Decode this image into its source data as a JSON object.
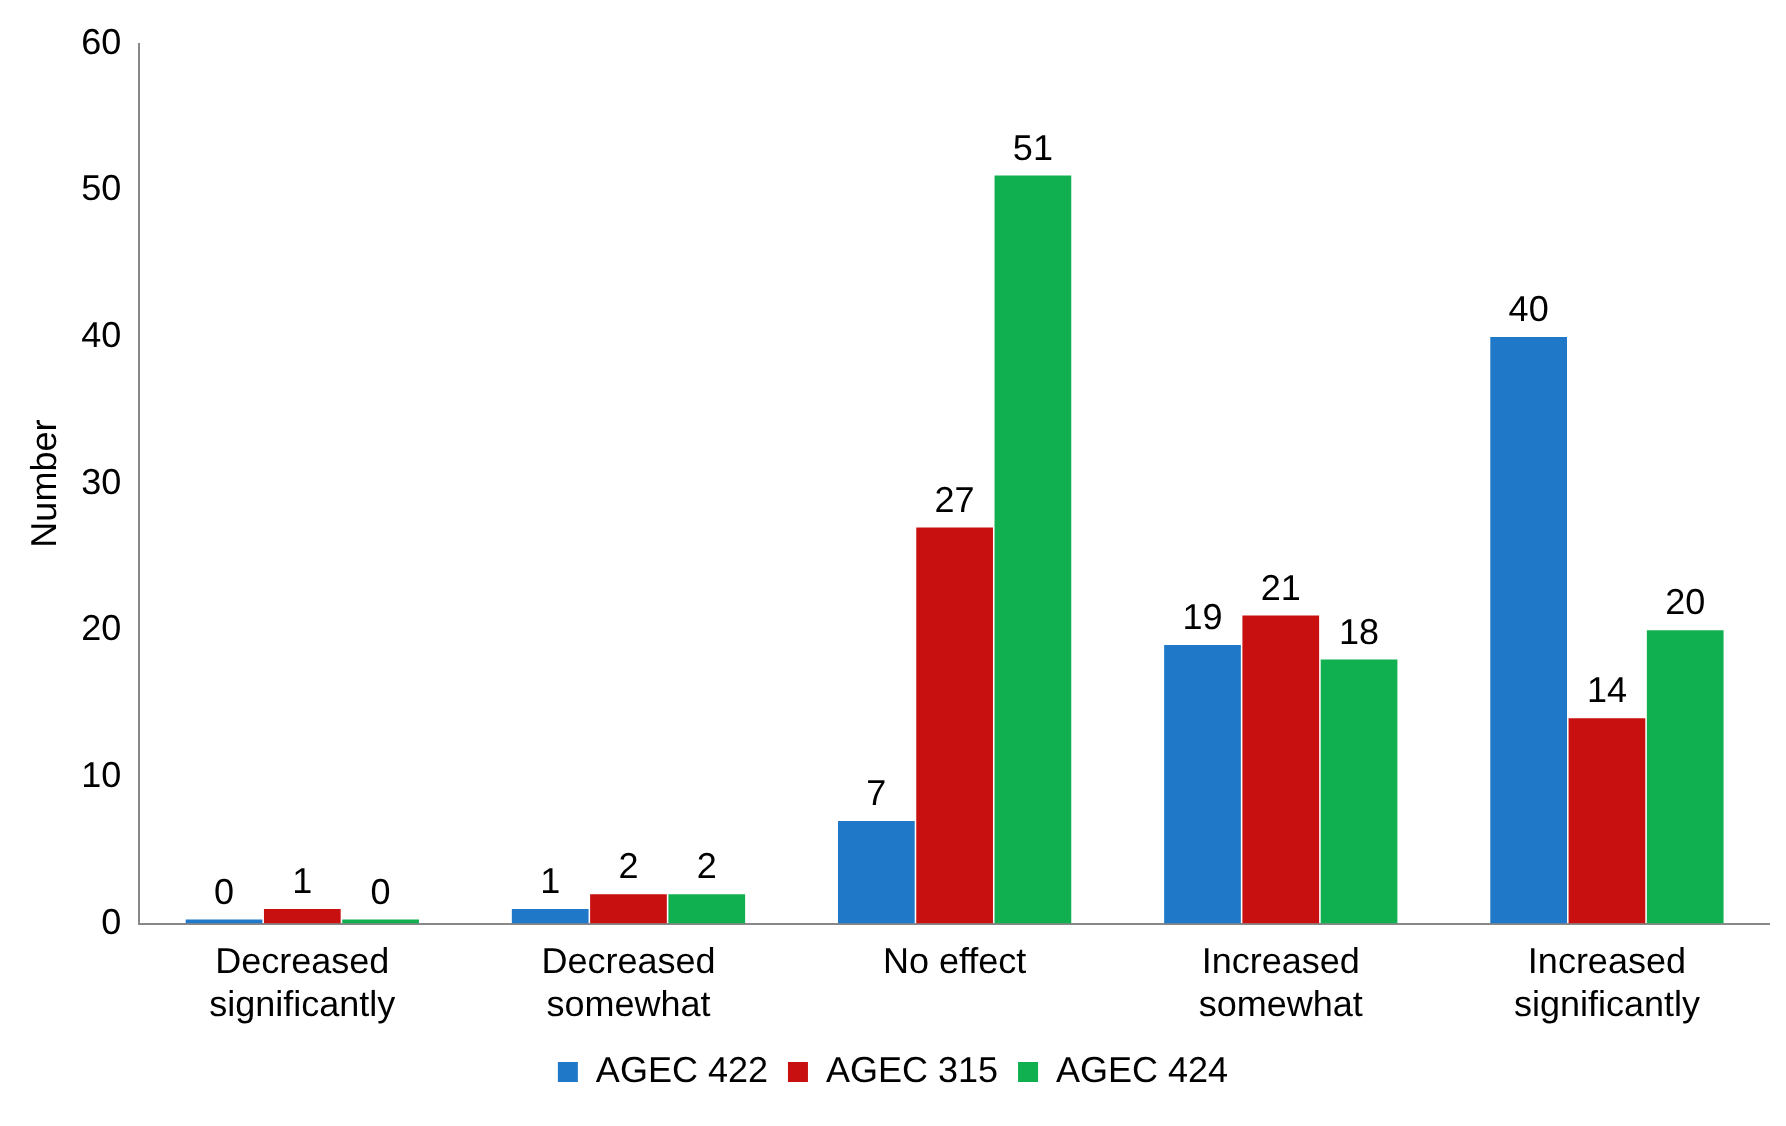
{
  "chart_data": {
    "type": "bar",
    "ylabel": "Number",
    "categories": [
      "Decreased significantly",
      "Decreased somewhat",
      "No effect",
      "Increased somewhat",
      "Increased significantly"
    ],
    "series": [
      {
        "name": "AGEC 422",
        "color": "#1f78c8",
        "values": [
          0,
          1,
          7,
          19,
          40
        ]
      },
      {
        "name": "AGEC 315",
        "color": "#c81010",
        "values": [
          1,
          2,
          27,
          21,
          14
        ]
      },
      {
        "name": "AGEC 424",
        "color": "#10b050",
        "values": [
          0,
          2,
          51,
          18,
          20
        ]
      }
    ],
    "ylim": [
      0,
      60
    ],
    "yticks": [
      0,
      10,
      20,
      30,
      40,
      50,
      60
    ],
    "grid": false,
    "legend": "bottom",
    "data_labels": true
  }
}
